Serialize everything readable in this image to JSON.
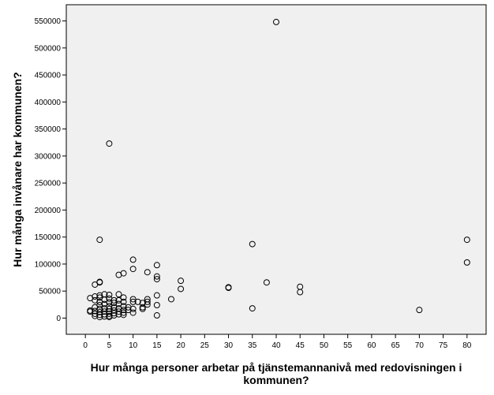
{
  "chart_data": {
    "type": "scatter",
    "title": "",
    "xlabel_lines": [
      "Hur många personer arbetar på tjänstemannanivå med redovisningen i",
      "kommunen?"
    ],
    "ylabel": "Hur många invånare har kommunen?",
    "xlim": [
      -4,
      84
    ],
    "ylim": [
      -30000,
      580000
    ],
    "xticks": [
      0,
      5,
      10,
      15,
      20,
      25,
      30,
      35,
      40,
      45,
      50,
      55,
      60,
      65,
      70,
      75,
      80
    ],
    "yticks": [
      0,
      50000,
      100000,
      150000,
      200000,
      250000,
      300000,
      350000,
      400000,
      450000,
      500000,
      550000
    ],
    "grid": false,
    "legend": "none",
    "colors": {
      "plot_background": "#f0f0f0",
      "marker_stroke": "#000000",
      "axis": "#000000"
    },
    "marker": "open-circle",
    "points": [
      {
        "x": 40,
        "y": 548000
      },
      {
        "x": 5,
        "y": 323000
      },
      {
        "x": 3,
        "y": 145000
      },
      {
        "x": 35,
        "y": 137000
      },
      {
        "x": 80,
        "y": 145000
      },
      {
        "x": 80,
        "y": 103000
      },
      {
        "x": 10,
        "y": 108000
      },
      {
        "x": 15,
        "y": 98000
      },
      {
        "x": 10,
        "y": 91000
      },
      {
        "x": 7,
        "y": 80000
      },
      {
        "x": 8,
        "y": 83000
      },
      {
        "x": 13,
        "y": 85000
      },
      {
        "x": 15,
        "y": 77000
      },
      {
        "x": 15,
        "y": 72000
      },
      {
        "x": 20,
        "y": 69000
      },
      {
        "x": 20,
        "y": 54000
      },
      {
        "x": 3,
        "y": 67000
      },
      {
        "x": 3,
        "y": 66000
      },
      {
        "x": 2,
        "y": 62000
      },
      {
        "x": 30,
        "y": 57000
      },
      {
        "x": 30,
        "y": 56000
      },
      {
        "x": 38,
        "y": 66000
      },
      {
        "x": 45,
        "y": 58000
      },
      {
        "x": 45,
        "y": 48000
      },
      {
        "x": 35,
        "y": 18000
      },
      {
        "x": 70,
        "y": 15000
      },
      {
        "x": 15,
        "y": 42000
      },
      {
        "x": 15,
        "y": 24000
      },
      {
        "x": 15,
        "y": 5000
      },
      {
        "x": 18,
        "y": 35000
      },
      {
        "x": 13,
        "y": 35000
      },
      {
        "x": 13,
        "y": 30000
      },
      {
        "x": 13,
        "y": 25000
      },
      {
        "x": 12,
        "y": 28000
      },
      {
        "x": 12,
        "y": 20000
      },
      {
        "x": 12,
        "y": 17000
      },
      {
        "x": 11,
        "y": 30000
      },
      {
        "x": 10,
        "y": 35000
      },
      {
        "x": 10,
        "y": 30000
      },
      {
        "x": 10,
        "y": 17000
      },
      {
        "x": 10,
        "y": 10000
      },
      {
        "x": 9,
        "y": 20000
      },
      {
        "x": 9,
        "y": 15000
      },
      {
        "x": 8,
        "y": 38000
      },
      {
        "x": 8,
        "y": 30000
      },
      {
        "x": 8,
        "y": 22000
      },
      {
        "x": 8,
        "y": 15000
      },
      {
        "x": 8,
        "y": 10000
      },
      {
        "x": 8,
        "y": 6000
      },
      {
        "x": 7,
        "y": 44000
      },
      {
        "x": 7,
        "y": 33000
      },
      {
        "x": 7,
        "y": 26000
      },
      {
        "x": 7,
        "y": 18000
      },
      {
        "x": 7,
        "y": 12000
      },
      {
        "x": 7,
        "y": 7000
      },
      {
        "x": 6,
        "y": 33000
      },
      {
        "x": 6,
        "y": 28000
      },
      {
        "x": 6,
        "y": 20000
      },
      {
        "x": 6,
        "y": 14000
      },
      {
        "x": 6,
        "y": 9000
      },
      {
        "x": 6,
        "y": 5000
      },
      {
        "x": 5,
        "y": 43000
      },
      {
        "x": 5,
        "y": 36000
      },
      {
        "x": 5,
        "y": 29000
      },
      {
        "x": 5,
        "y": 22000
      },
      {
        "x": 5,
        "y": 17000
      },
      {
        "x": 5,
        "y": 12000
      },
      {
        "x": 5,
        "y": 8000
      },
      {
        "x": 5,
        "y": 4000
      },
      {
        "x": 5,
        "y": 2000
      },
      {
        "x": 4,
        "y": 44000
      },
      {
        "x": 4,
        "y": 34000
      },
      {
        "x": 4,
        "y": 26000
      },
      {
        "x": 4,
        "y": 18000
      },
      {
        "x": 4,
        "y": 12000
      },
      {
        "x": 4,
        "y": 7000
      },
      {
        "x": 4,
        "y": 3000
      },
      {
        "x": 3,
        "y": 42000
      },
      {
        "x": 3,
        "y": 38000
      },
      {
        "x": 3,
        "y": 30000
      },
      {
        "x": 3,
        "y": 24000
      },
      {
        "x": 3,
        "y": 17000
      },
      {
        "x": 3,
        "y": 11000
      },
      {
        "x": 3,
        "y": 6000
      },
      {
        "x": 3,
        "y": 2000
      },
      {
        "x": 2,
        "y": 40000
      },
      {
        "x": 2,
        "y": 33000
      },
      {
        "x": 2,
        "y": 20000
      },
      {
        "x": 2,
        "y": 13000
      },
      {
        "x": 2,
        "y": 8000
      },
      {
        "x": 2,
        "y": 4000
      },
      {
        "x": 1,
        "y": 37000
      },
      {
        "x": 1,
        "y": 14000
      },
      {
        "x": 1,
        "y": 12000
      }
    ]
  }
}
